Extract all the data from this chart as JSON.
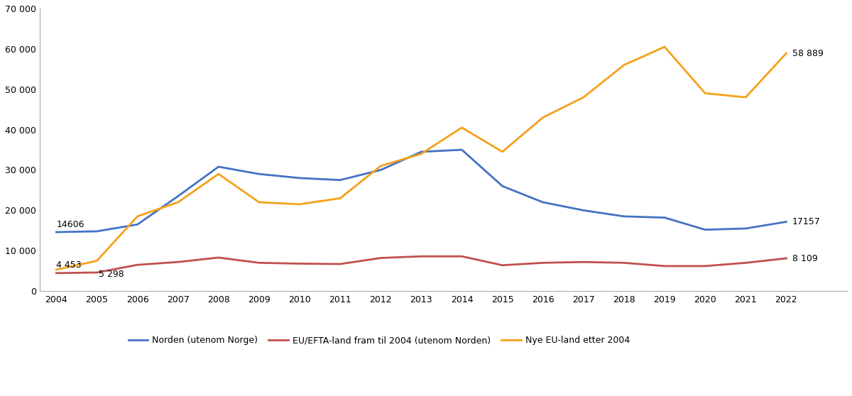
{
  "years": [
    2004,
    2005,
    2006,
    2007,
    2008,
    2009,
    2010,
    2011,
    2012,
    2013,
    2014,
    2015,
    2016,
    2017,
    2018,
    2019,
    2020,
    2021,
    2022
  ],
  "norden": [
    14606,
    14800,
    16500,
    23500,
    30800,
    29000,
    28000,
    27500,
    30000,
    34500,
    35000,
    26000,
    22000,
    20000,
    18500,
    18200,
    15200,
    15500,
    17157
  ],
  "eu_efta": [
    4453,
    4600,
    6500,
    7200,
    8300,
    7000,
    6800,
    6700,
    8200,
    8600,
    8600,
    6400,
    7000,
    7200,
    7000,
    6200,
    6200,
    7000,
    8109
  ],
  "nye_eu": [
    5298,
    7500,
    18500,
    22000,
    29000,
    22000,
    21500,
    23000,
    31000,
    34000,
    40500,
    34500,
    43000,
    48000,
    56000,
    60500,
    49000,
    48000,
    58889
  ],
  "norden_color": "#4472c4",
  "eu_efta_color": "#c0504d",
  "nye_eu_color": "#f4a118",
  "ylim": [
    0,
    70000
  ],
  "yticks": [
    0,
    10000,
    20000,
    30000,
    40000,
    50000,
    60000,
    70000
  ],
  "ytick_labels": [
    "0",
    "10 000",
    "20 000",
    "30 000",
    "40 000",
    "50 000",
    "60 000",
    "70 000"
  ],
  "legend_labels": [
    "Norden (utenom Norge)",
    "EU/EFTA-land fram til 2004 (utenom Norden)",
    "Nye EU-land etter 2004"
  ],
  "ann_2004_norden_val": 14606,
  "ann_2004_norden_txt": "14606",
  "ann_2004_euefta_val": 4453,
  "ann_2004_euefta_txt": "4 453",
  "ann_2005_nyeeu_val": 7500,
  "ann_2005_nyeeu_txt": "5 298",
  "ann_2022_norden_val": 17157,
  "ann_2022_norden_txt": "17157",
  "ann_2022_euefta_val": 8109,
  "ann_2022_euefta_txt": "8 109",
  "ann_2022_nyeeu_val": 58889,
  "ann_2022_nyeeu_txt": "58 889",
  "line_width": 2.0,
  "background_color": "#ffffff",
  "xlim_left": 2003.6,
  "xlim_right": 2023.5
}
